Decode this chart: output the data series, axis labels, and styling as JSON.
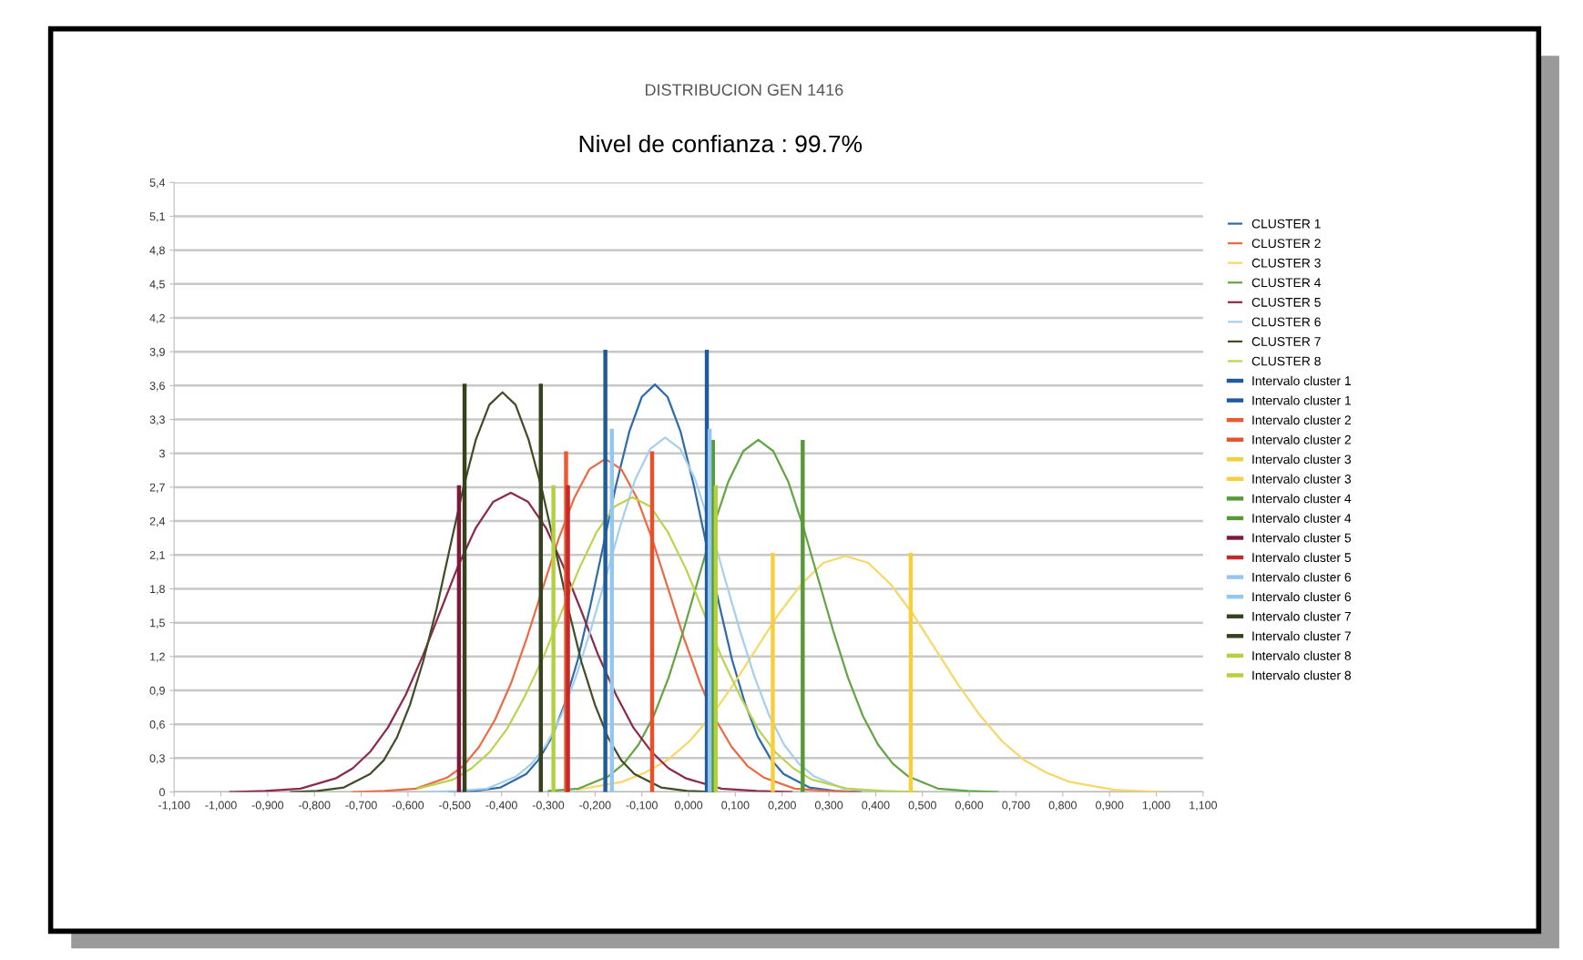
{
  "chart_data": {
    "type": "line",
    "title": "DISTRIBUCION GEN 1416",
    "subtitle": "Nivel de confianza : 99.7%",
    "xlim": [
      -1.1,
      1.1
    ],
    "xticks": [
      {
        "value": -1.1,
        "label": "-1,100"
      },
      {
        "value": -1.0,
        "label": "-1,000"
      },
      {
        "value": -0.9,
        "label": "-0,900"
      },
      {
        "value": -0.8,
        "label": "-0,800"
      },
      {
        "value": -0.7,
        "label": "-0,700"
      },
      {
        "value": -0.6,
        "label": "-0,600"
      },
      {
        "value": -0.5,
        "label": "-0,500"
      },
      {
        "value": -0.4,
        "label": "-0,400"
      },
      {
        "value": -0.3,
        "label": "-0,300"
      },
      {
        "value": -0.2,
        "label": "-0,200"
      },
      {
        "value": -0.1,
        "label": "-0,100"
      },
      {
        "value": 0,
        "label": "0,000"
      },
      {
        "value": 0.1,
        "label": "0,100"
      },
      {
        "value": 0.2,
        "label": "0,200"
      },
      {
        "value": 0.3,
        "label": "0,300"
      },
      {
        "value": 0.4,
        "label": "0,400"
      },
      {
        "value": 0.5,
        "label": "0,500"
      },
      {
        "value": 0.6,
        "label": "0,600"
      },
      {
        "value": 0.7,
        "label": "0,700"
      },
      {
        "value": 0.8,
        "label": "0,800"
      },
      {
        "value": 0.9,
        "label": "0,900"
      },
      {
        "value": 1.0,
        "label": "1,000"
      },
      {
        "value": 1.1,
        "label": "1,100"
      }
    ],
    "ylim": [
      0,
      5.4
    ],
    "yticks": [
      0,
      {
        "value": 0.3,
        "label": "0,3"
      },
      {
        "value": 0.6,
        "label": "0,6"
      },
      {
        "value": 0.9,
        "label": "0,9"
      },
      {
        "value": 1.2,
        "label": "1,2"
      },
      {
        "value": 1.5,
        "label": "1,5"
      },
      {
        "value": 1.8,
        "label": "1,8"
      },
      {
        "value": 2.1,
        "label": "2,1"
      },
      {
        "value": 2.4,
        "label": "2,4"
      },
      {
        "value": 2.7,
        "label": "2,7"
      },
      3,
      {
        "value": 3.3,
        "label": "3,3"
      },
      {
        "value": 3.6,
        "label": "3,6"
      },
      {
        "value": 3.9,
        "label": "3,9"
      },
      {
        "value": 4.2,
        "label": "4,2"
      },
      {
        "value": 4.5,
        "label": "4,5"
      },
      {
        "value": 4.8,
        "label": "4,8"
      },
      {
        "value": 5.1,
        "label": "5,1"
      },
      {
        "value": 5.4,
        "label": "5,4"
      }
    ],
    "grid": "y",
    "legend": "right",
    "marker": "none",
    "line_style": "solid",
    "series": [
      {
        "name": "CLUSTER 1",
        "color": "#2f6ba8",
        "x": [
          -0.512,
          -0.457,
          -0.402,
          -0.347,
          -0.32,
          -0.292,
          -0.265,
          -0.237,
          -0.21,
          -0.182,
          -0.155,
          -0.127,
          -0.1,
          -0.072,
          -0.045,
          -0.017,
          0.011,
          0.038,
          0.066,
          0.093,
          0.121,
          0.148,
          0.176,
          0.203,
          0.258,
          0.313,
          0.368
        ],
        "values": [
          0,
          0.01,
          0.04,
          0.16,
          0.29,
          0.49,
          0.78,
          1.17,
          1.65,
          2.19,
          2.72,
          3.19,
          3.5,
          3.61,
          3.5,
          3.19,
          2.72,
          2.19,
          1.65,
          1.17,
          0.78,
          0.49,
          0.29,
          0.16,
          0.04,
          0.01,
          0
        ]
      },
      {
        "name": "CLUSTER 2",
        "color": "#ec6a44",
        "x": [
          -0.718,
          -0.65,
          -0.583,
          -0.515,
          -0.482,
          -0.448,
          -0.414,
          -0.38,
          -0.347,
          -0.313,
          -0.279,
          -0.245,
          -0.212,
          -0.178,
          -0.144,
          -0.11,
          -0.077,
          -0.043,
          -0.009,
          0.025,
          0.058,
          0.092,
          0.126,
          0.16,
          0.227,
          0.295,
          0.362
        ],
        "values": [
          0,
          0.01,
          0.03,
          0.13,
          0.23,
          0.4,
          0.64,
          0.96,
          1.35,
          1.79,
          2.23,
          2.6,
          2.86,
          2.95,
          2.86,
          2.6,
          2.23,
          1.79,
          1.35,
          0.96,
          0.64,
          0.4,
          0.23,
          0.13,
          0.03,
          0.01,
          0
        ]
      },
      {
        "name": "CLUSTER 3",
        "color": "#f6d868",
        "x": [
          -0.237,
          -0.142,
          -0.094,
          -0.046,
          0.002,
          0.05,
          0.097,
          0.145,
          0.193,
          0.241,
          0.288,
          0.336,
          0.384,
          0.432,
          0.479,
          0.527,
          0.575,
          0.623,
          0.67,
          0.718,
          0.766,
          0.814,
          0.909,
          1.005
        ],
        "values": [
          0.02,
          0.09,
          0.17,
          0.28,
          0.45,
          0.68,
          0.96,
          1.27,
          1.58,
          1.84,
          2.03,
          2.09,
          2.03,
          1.84,
          1.58,
          1.27,
          0.96,
          0.68,
          0.45,
          0.28,
          0.17,
          0.09,
          0.02,
          0
        ]
      },
      {
        "name": "CLUSTER 4",
        "color": "#63a544",
        "x": [
          -0.299,
          -0.235,
          -0.171,
          -0.139,
          -0.107,
          -0.075,
          -0.043,
          -0.011,
          0.021,
          0.053,
          0.085,
          0.117,
          0.149,
          0.181,
          0.213,
          0.245,
          0.277,
          0.309,
          0.341,
          0.373,
          0.405,
          0.437,
          0.469,
          0.533,
          0.597,
          0.661
        ],
        "values": [
          0.01,
          0.03,
          0.14,
          0.25,
          0.42,
          0.67,
          1.01,
          1.43,
          1.89,
          2.35,
          2.75,
          3.02,
          3.12,
          3.02,
          2.75,
          2.35,
          1.89,
          1.43,
          1.01,
          0.67,
          0.42,
          0.25,
          0.14,
          0.03,
          0.01,
          0
        ]
      },
      {
        "name": "CLUSTER 5",
        "color": "#8a2a4c",
        "x": [
          -0.98,
          -0.905,
          -0.83,
          -0.755,
          -0.718,
          -0.68,
          -0.643,
          -0.605,
          -0.568,
          -0.53,
          -0.493,
          -0.455,
          -0.418,
          -0.38,
          -0.343,
          -0.305,
          -0.268,
          -0.23,
          -0.193,
          -0.155,
          -0.118,
          -0.08,
          -0.043,
          -0.005,
          0.07,
          0.145,
          0.22
        ],
        "values": [
          0,
          0.01,
          0.03,
          0.12,
          0.21,
          0.36,
          0.57,
          0.86,
          1.21,
          1.61,
          2.0,
          2.34,
          2.57,
          2.65,
          2.57,
          2.34,
          2.0,
          1.61,
          1.21,
          0.86,
          0.57,
          0.36,
          0.21,
          0.12,
          0.03,
          0.01,
          0
        ]
      },
      {
        "name": "CLUSTER 6",
        "color": "#a6cfee",
        "x": [
          -0.558,
          -0.495,
          -0.431,
          -0.368,
          -0.336,
          -0.304,
          -0.272,
          -0.241,
          -0.209,
          -0.177,
          -0.145,
          -0.114,
          -0.082,
          -0.05,
          -0.018,
          0.014,
          0.045,
          0.077,
          0.109,
          0.141,
          0.172,
          0.204,
          0.236,
          0.268,
          0.331,
          0.395,
          0.458
        ],
        "values": [
          0,
          0.01,
          0.03,
          0.14,
          0.25,
          0.42,
          0.68,
          1.02,
          1.44,
          1.9,
          2.37,
          2.77,
          3.04,
          3.14,
          3.04,
          2.77,
          2.37,
          1.9,
          1.44,
          1.02,
          0.68,
          0.42,
          0.25,
          0.14,
          0.03,
          0.01,
          0
        ]
      },
      {
        "name": "CLUSTER 7",
        "color": "#414d26",
        "x": [
          -0.85,
          -0.794,
          -0.737,
          -0.681,
          -0.652,
          -0.624,
          -0.596,
          -0.568,
          -0.539,
          -0.511,
          -0.483,
          -0.455,
          -0.426,
          -0.398,
          -0.37,
          -0.342,
          -0.313,
          -0.285,
          -0.257,
          -0.229,
          -0.2,
          -0.172,
          -0.144,
          -0.116,
          -0.059,
          -0.003,
          0.054
        ],
        "values": [
          0,
          0.01,
          0.04,
          0.16,
          0.28,
          0.48,
          0.77,
          1.15,
          1.62,
          2.15,
          2.67,
          3.12,
          3.43,
          3.54,
          3.43,
          3.12,
          2.67,
          2.15,
          1.62,
          1.15,
          0.77,
          0.48,
          0.28,
          0.16,
          0.04,
          0.01,
          0
        ]
      },
      {
        "name": "CLUSTER 8",
        "color": "#bcd350",
        "x": [
          -0.579,
          -0.503,
          -0.464,
          -0.426,
          -0.388,
          -0.35,
          -0.311,
          -0.273,
          -0.235,
          -0.197,
          -0.158,
          -0.12,
          -0.082,
          -0.044,
          -0.005,
          0.033,
          0.071,
          0.11,
          0.148,
          0.186,
          0.224,
          0.263,
          0.339,
          0.416,
          0.492
        ],
        "values": [
          0.03,
          0.11,
          0.21,
          0.35,
          0.56,
          0.85,
          1.19,
          1.58,
          1.97,
          2.3,
          2.53,
          2.61,
          2.53,
          2.3,
          1.97,
          1.58,
          1.19,
          0.85,
          0.56,
          0.35,
          0.21,
          0.11,
          0.03,
          0.01,
          0
        ]
      },
      {
        "name": "Intervalo cluster 1",
        "color": "#1f5b9a",
        "x": [
          -0.178,
          -0.178
        ],
        "values": [
          0,
          3.9
        ]
      },
      {
        "name": "Intervalo cluster 1",
        "color": "#1f5b9a",
        "x": [
          0.039,
          0.039
        ],
        "values": [
          0,
          3.9
        ]
      },
      {
        "name": "Intervalo cluster 2",
        "color": "#ee5a30",
        "x": [
          -0.262,
          -0.262
        ],
        "values": [
          0,
          3.0
        ]
      },
      {
        "name": "Intervalo cluster 2",
        "color": "#e8502a",
        "x": [
          -0.078,
          -0.078
        ],
        "values": [
          0,
          3.0
        ]
      },
      {
        "name": "Intervalo cluster 3",
        "color": "#f7cf3a",
        "x": [
          0.18,
          0.18
        ],
        "values": [
          0,
          2.1
        ]
      },
      {
        "name": "Intervalo cluster 3",
        "color": "#f7cf3a",
        "x": [
          0.475,
          0.475
        ],
        "values": [
          0,
          2.1
        ]
      },
      {
        "name": "Intervalo cluster 4",
        "color": "#559a34",
        "x": [
          0.052,
          0.052
        ],
        "values": [
          0,
          3.1
        ]
      },
      {
        "name": "Intervalo cluster 4",
        "color": "#559a34",
        "x": [
          0.244,
          0.244
        ],
        "values": [
          0,
          3.1
        ]
      },
      {
        "name": "Intervalo cluster 5",
        "color": "#7d1a3a",
        "x": [
          -0.491,
          -0.491
        ],
        "values": [
          0,
          2.7
        ]
      },
      {
        "name": "Intervalo cluster 5",
        "color": "#c42a2a",
        "x": [
          -0.258,
          -0.258
        ],
        "values": [
          0,
          2.7
        ]
      },
      {
        "name": "Intervalo cluster 6",
        "color": "#94c6ef",
        "x": [
          -0.164,
          -0.164
        ],
        "values": [
          0,
          3.2
        ]
      },
      {
        "name": "Intervalo cluster 6",
        "color": "#94c6ef",
        "x": [
          0.045,
          0.045
        ],
        "values": [
          0,
          3.2
        ]
      },
      {
        "name": "Intervalo cluster 7",
        "color": "#35421c",
        "x": [
          -0.479,
          -0.479
        ],
        "values": [
          0,
          3.6
        ]
      },
      {
        "name": "Intervalo cluster 7",
        "color": "#35421c",
        "x": [
          -0.316,
          -0.316
        ],
        "values": [
          0,
          3.6
        ]
      },
      {
        "name": "Intervalo cluster 8",
        "color": "#b4d040",
        "x": [
          -0.289,
          -0.289
        ],
        "values": [
          0,
          2.7
        ]
      },
      {
        "name": "Intervalo cluster 8",
        "color": "#b4d040",
        "x": [
          0.058,
          0.058
        ],
        "values": [
          0,
          2.7
        ]
      }
    ]
  }
}
